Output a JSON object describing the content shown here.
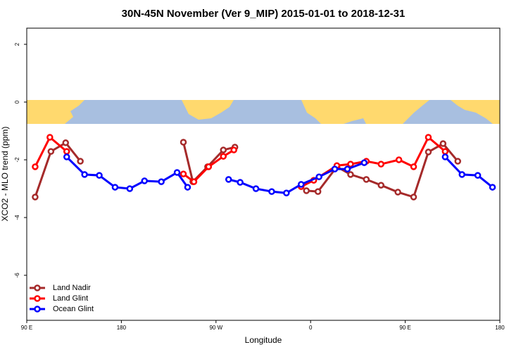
{
  "chart_data": {
    "type": "line",
    "title": "30N-45N November (Ver 9_MIP)   2015-01-01 to 2018-12-31",
    "x_label": "Longitude",
    "y_label": "XCO2 - MLO trend (ppm)",
    "xlim": [
      90,
      540
    ],
    "ylim": [
      -7.56,
      2.56
    ],
    "xticks": [
      {
        "value": 90,
        "label": "90 E"
      },
      180,
      {
        "value": 270,
        "label": "90 W"
      },
      {
        "value": 360,
        "label": "0"
      },
      {
        "value": 450,
        "label": "90 E"
      },
      {
        "value": 540,
        "label": "180"
      }
    ],
    "yticks": [
      2,
      0,
      -2,
      -4,
      -6
    ],
    "legend": "bottom-left",
    "series": [
      {
        "name": "Land Nadir",
        "color": "#a52a2a",
        "x": [
          98,
          113,
          127,
          141,
          null,
          239,
          248,
          262,
          277,
          288,
          null,
          356,
          367,
          385,
          398,
          413,
          427,
          443,
          458,
          472,
          486,
          500
        ],
        "values": [
          -3.29,
          -1.71,
          -1.41,
          -2.05,
          null,
          -1.39,
          -2.76,
          -2.24,
          -1.66,
          -1.56,
          null,
          -3.07,
          -3.1,
          -2.24,
          -2.51,
          -2.68,
          -2.88,
          -3.12,
          -3.29,
          -1.73,
          -1.44,
          -2.05
        ]
      },
      {
        "name": "Land Glint",
        "color": "#ff0000",
        "x": [
          98,
          112,
          128,
          null,
          239,
          249,
          263,
          277,
          287,
          null,
          351,
          363,
          385,
          398,
          413,
          427,
          444,
          458,
          472,
          488
        ],
        "values": [
          -2.24,
          -1.22,
          -1.71,
          null,
          -2.49,
          -2.76,
          -2.24,
          -1.88,
          -1.66,
          null,
          -2.93,
          -2.71,
          -2.2,
          -2.15,
          -2.05,
          -2.15,
          -2.0,
          -2.24,
          -1.22,
          -1.71
        ]
      },
      {
        "name": "Ocean Glint",
        "color": "#0000ff",
        "x": [
          128,
          145,
          159,
          174,
          188,
          202,
          218,
          233,
          243,
          null,
          282,
          293,
          308,
          323,
          337,
          351,
          368,
          383,
          395,
          411,
          null,
          488,
          504,
          519,
          533
        ],
        "values": [
          -1.9,
          -2.51,
          -2.54,
          -2.95,
          -3.0,
          -2.73,
          -2.76,
          -2.44,
          -2.95,
          null,
          -2.68,
          -2.78,
          -3.0,
          -3.1,
          -3.15,
          -2.85,
          -2.59,
          -2.32,
          -2.32,
          -2.1,
          null,
          -1.9,
          -2.51,
          -2.54,
          -2.95
        ]
      }
    ]
  }
}
